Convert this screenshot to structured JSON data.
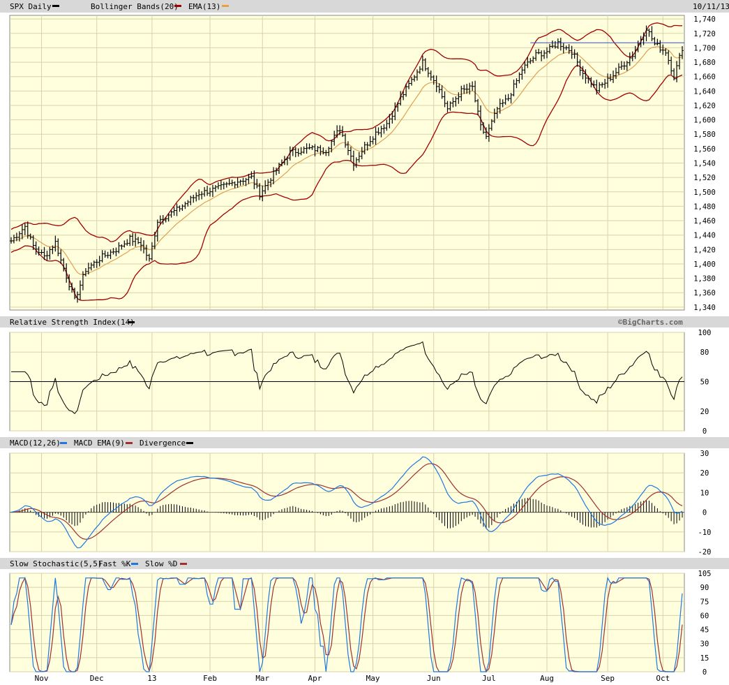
{
  "header": {
    "symbol": "SPX",
    "period": "Daily",
    "indicator1": "Bollinger Bands(20)",
    "indicator2": "EMA(13)",
    "date": "10/11/13"
  },
  "watermark": "©BigCharts.com",
  "months": [
    {
      "label": "Nov",
      "idx": 11
    },
    {
      "label": "Dec",
      "idx": 31
    },
    {
      "label": "13",
      "idx": 51
    },
    {
      "label": "Feb",
      "idx": 72
    },
    {
      "label": "Mar",
      "idx": 91
    },
    {
      "label": "Apr",
      "idx": 110
    },
    {
      "label": "May",
      "idx": 131
    },
    {
      "label": "Jun",
      "idx": 153
    },
    {
      "label": "Jul",
      "idx": 173
    },
    {
      "label": "Aug",
      "idx": 194
    },
    {
      "label": "Sep",
      "idx": 216
    },
    {
      "label": "Oct",
      "idx": 236
    }
  ],
  "chart_data": [
    {
      "type": "ohlc",
      "name": "SPX Daily",
      "series_names": [
        "Bollinger Bands(20)",
        "EMA(13)"
      ],
      "y_ticks": [
        1340,
        1360,
        1380,
        1400,
        1420,
        1440,
        1460,
        1480,
        1500,
        1520,
        1540,
        1560,
        1580,
        1600,
        1620,
        1640,
        1660,
        1680,
        1700,
        1720,
        1740
      ],
      "ylim": [
        1336,
        1745
      ],
      "x_count": 244,
      "anchors": [
        [
          0,
          1432
        ],
        [
          5,
          1452
        ],
        [
          8,
          1425
        ],
        [
          12,
          1410
        ],
        [
          16,
          1430
        ],
        [
          18,
          1405
        ],
        [
          23,
          1350
        ],
        [
          27,
          1392
        ],
        [
          33,
          1410
        ],
        [
          38,
          1420
        ],
        [
          43,
          1435
        ],
        [
          47,
          1428
        ],
        [
          50,
          1405
        ],
        [
          53,
          1460
        ],
        [
          60,
          1475
        ],
        [
          68,
          1498
        ],
        [
          75,
          1505
        ],
        [
          82,
          1515
        ],
        [
          87,
          1520
        ],
        [
          90,
          1497
        ],
        [
          95,
          1525
        ],
        [
          101,
          1555
        ],
        [
          108,
          1560
        ],
        [
          114,
          1558
        ],
        [
          119,
          1588
        ],
        [
          124,
          1540
        ],
        [
          128,
          1563
        ],
        [
          132,
          1582
        ],
        [
          136,
          1595
        ],
        [
          141,
          1630
        ],
        [
          145,
          1655
        ],
        [
          149,
          1680
        ],
        [
          154,
          1650
        ],
        [
          158,
          1615
        ],
        [
          163,
          1640
        ],
        [
          167,
          1645
        ],
        [
          170,
          1590
        ],
        [
          172,
          1577
        ],
        [
          176,
          1615
        ],
        [
          180,
          1630
        ],
        [
          185,
          1670
        ],
        [
          190,
          1690
        ],
        [
          194,
          1695
        ],
        [
          198,
          1707
        ],
        [
          203,
          1695
        ],
        [
          207,
          1665
        ],
        [
          212,
          1642
        ],
        [
          216,
          1655
        ],
        [
          220,
          1670
        ],
        [
          225,
          1690
        ],
        [
          230,
          1728
        ],
        [
          233,
          1705
        ],
        [
          237,
          1695
        ],
        [
          240,
          1660
        ],
        [
          243,
          1700
        ]
      ],
      "hline": 1707
    },
    {
      "type": "line",
      "name": "Relative Strength Index(14)",
      "y_ticks": [
        0,
        20,
        50,
        80,
        100
      ],
      "ylim": [
        0,
        100
      ],
      "center": 50
    },
    {
      "type": "macd",
      "name": "MACD(12,26)",
      "series_names": [
        "MACD EMA(9)",
        "Divergence"
      ],
      "y_ticks": [
        -20,
        -10,
        0,
        10,
        20,
        30
      ],
      "ylim": [
        -20,
        30
      ]
    },
    {
      "type": "stochastic",
      "name": "Slow Stochastic(5,5)",
      "series_names": [
        "Fast %K",
        "Slow %D"
      ],
      "y_ticks": [
        0,
        15,
        30,
        45,
        60,
        75,
        90,
        105
      ],
      "ylim": [
        0,
        105
      ]
    }
  ]
}
